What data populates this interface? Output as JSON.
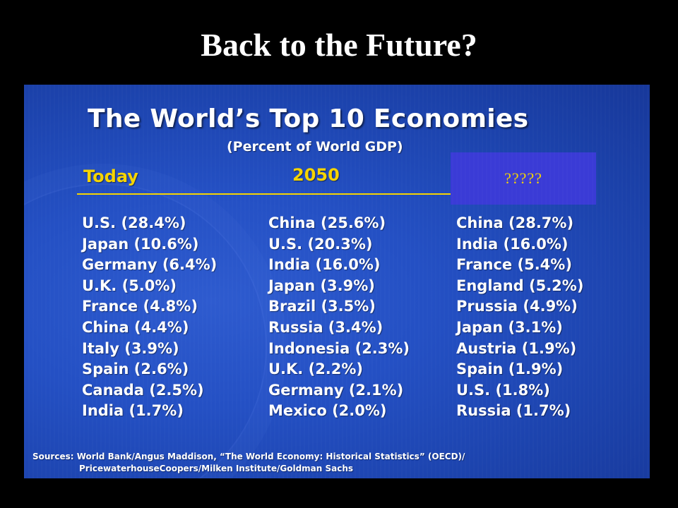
{
  "slide": {
    "title": "Back to the Future?"
  },
  "panel": {
    "title": "The World’s Top 10 Economies",
    "subtitle": "(Percent of World GDP)",
    "columns": {
      "today": {
        "header": "Today",
        "items": [
          "U.S. (28.4%)",
          "Japan (10.6%)",
          "Germany (6.4%)",
          "U.K. (5.0%)",
          "France (4.8%)",
          "China (4.4%)",
          "Italy (3.9%)",
          "Spain (2.6%)",
          "Canada (2.5%)",
          "India (1.7%)"
        ]
      },
      "y2050": {
        "header": "2050",
        "items": [
          "China (25.6%)",
          "U.S. (20.3%)",
          "India (16.0%)",
          "Japan (3.9%)",
          "Brazil (3.5%)",
          "Russia (3.4%)",
          "Indonesia (2.3%)",
          "U.K. (2.2%)",
          "Germany (2.1%)",
          "Mexico (2.0%)"
        ]
      },
      "historical": {
        "header": "?????",
        "items": [
          "China (28.7%)",
          "India (16.0%)",
          "France (5.4%)",
          "England (5.2%)",
          "Prussia (4.9%)",
          "Japan (3.1%)",
          "Austria (1.9%)",
          "Spain (1.9%)",
          "U.S. (1.8%)",
          "Russia (1.7%)"
        ]
      }
    },
    "sources": {
      "line1": "Sources: World Bank/Angus Maddison, “The World Economy: Historical Statistics” (OECD)/",
      "line2": "PricewaterhouseCoopers/Milken Institute/Goldman Sachs"
    }
  },
  "colors": {
    "background": "#000000",
    "panel_blue": "#2450c4",
    "header_yellow": "#f5d400",
    "box_purple": "#3a3bd6",
    "text_white": "#ffffff"
  }
}
